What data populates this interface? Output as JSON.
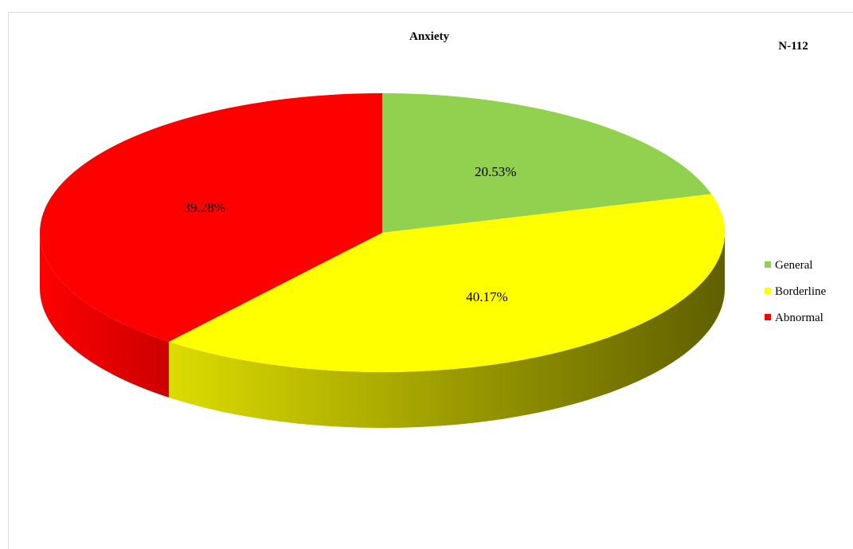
{
  "chart_data": {
    "type": "pie",
    "title": "Anxiety",
    "sample_size_label": "N-112",
    "categories": [
      "General",
      "Borderline",
      "Abnormal"
    ],
    "values": [
      20.53,
      40.17,
      39.28
    ],
    "data_labels": [
      "20.53%",
      "40.17%",
      "39.28%"
    ],
    "colors": [
      "#92d050",
      "#ffff00",
      "#ff0000"
    ],
    "legend_position": "right",
    "style": "3d"
  }
}
